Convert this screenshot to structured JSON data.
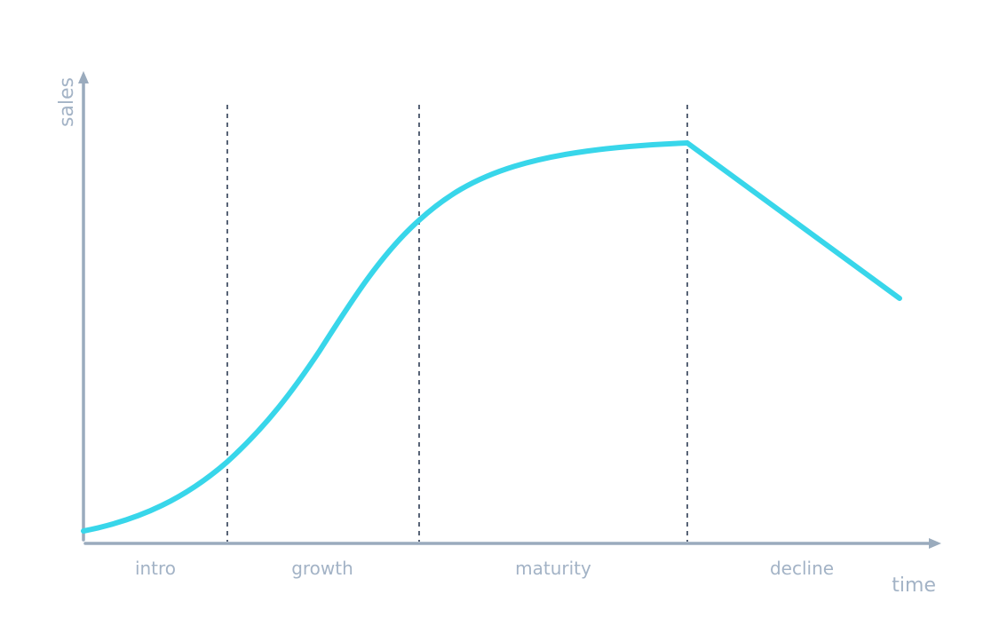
{
  "diagram": {
    "axes": {
      "x_label": "time",
      "y_label": "sales"
    },
    "stages": [
      {
        "label": "intro"
      },
      {
        "label": "growth"
      },
      {
        "label": "maturity"
      },
      {
        "label": "decline"
      }
    ],
    "colors": {
      "curve": "#38d6ea",
      "axis": "#9aabbd",
      "divider": "#2f3d55",
      "label": "#a3b3c6"
    }
  }
}
